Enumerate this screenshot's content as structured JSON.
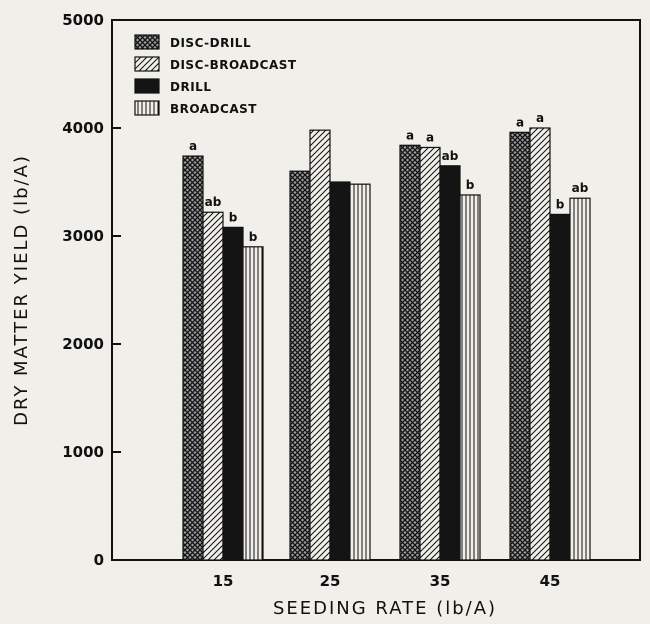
{
  "chart_data": {
    "type": "bar",
    "title": "",
    "xlabel": "SEEDING RATE (lb/A)",
    "ylabel": "DRY MATTER YIELD (lb/A)",
    "categories": [
      "15",
      "25",
      "35",
      "45"
    ],
    "ylim": [
      0,
      5000
    ],
    "yticks": [
      0,
      1000,
      2000,
      3000,
      4000,
      5000
    ],
    "legend_position": "top-left",
    "grid": false,
    "series": [
      {
        "name": "DISC-DRILL",
        "pattern": "crosshatch",
        "values": [
          3740,
          3600,
          3840,
          3960
        ],
        "labels": [
          "a",
          "",
          "a",
          "a"
        ]
      },
      {
        "name": "DISC-BROADCAST",
        "pattern": "diagonal",
        "values": [
          3220,
          3980,
          3820,
          4000
        ],
        "labels": [
          "ab",
          "",
          "a",
          "a"
        ]
      },
      {
        "name": "DRILL",
        "pattern": "solid",
        "values": [
          3080,
          3500,
          3650,
          3200
        ],
        "labels": [
          "b",
          "",
          "ab",
          "b"
        ]
      },
      {
        "name": "BROADCAST",
        "pattern": "vertical",
        "values": [
          2900,
          3480,
          3380,
          3350
        ],
        "labels": [
          "b",
          "",
          "b",
          "ab"
        ]
      }
    ]
  }
}
